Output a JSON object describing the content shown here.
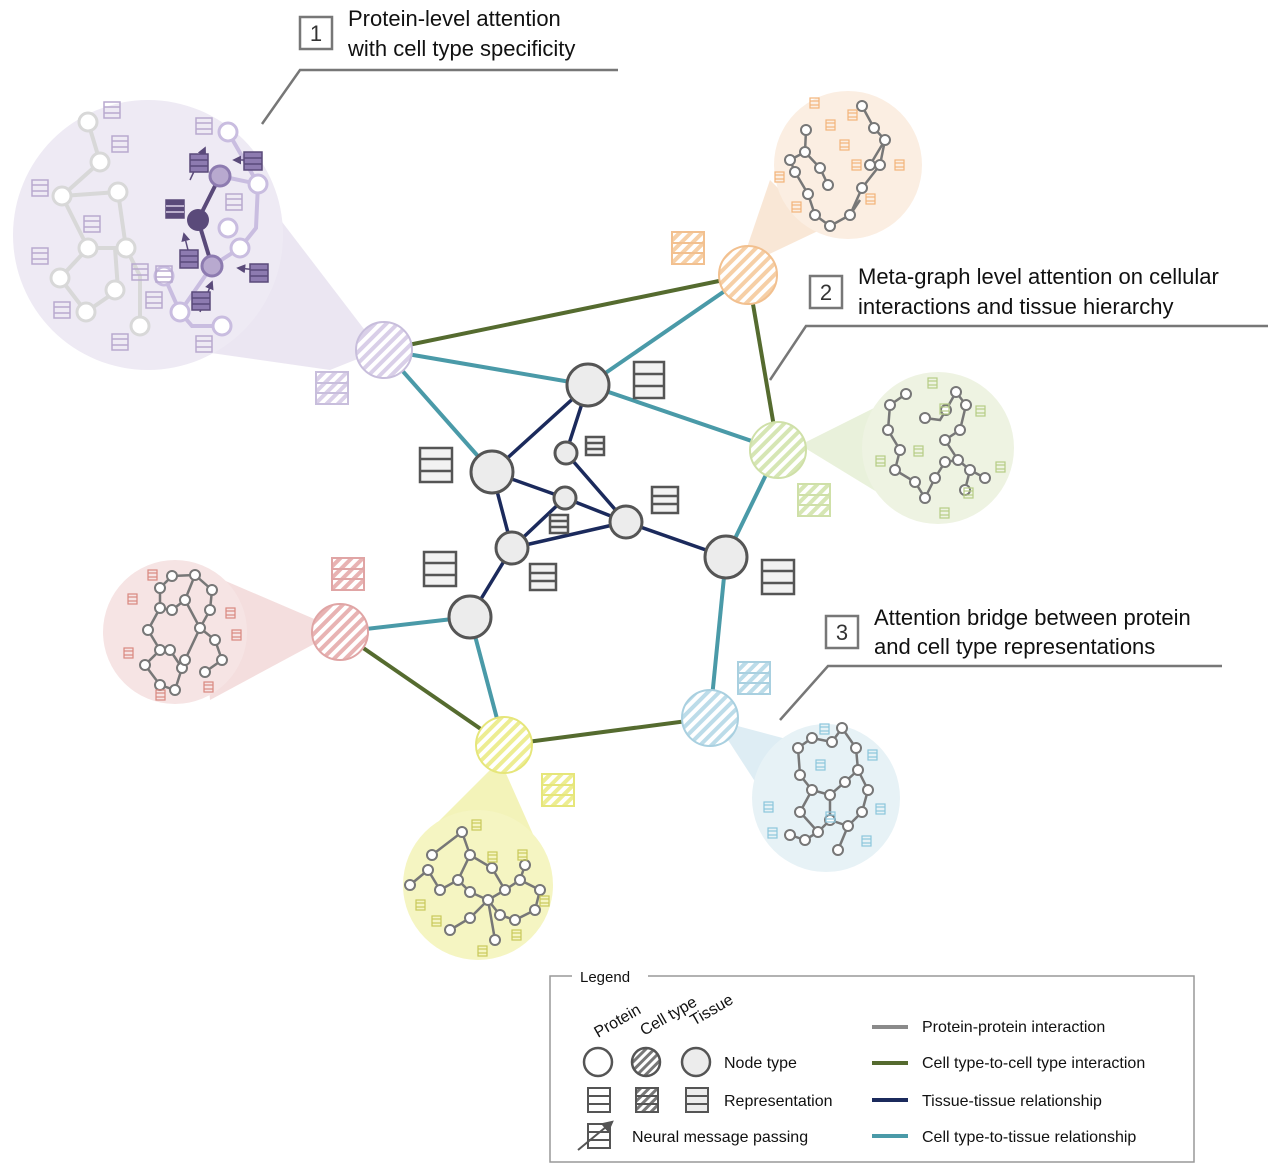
{
  "callouts": [
    {
      "number": "1",
      "line1": "Protein-level attention",
      "line2": "with cell type specificity"
    },
    {
      "number": "2",
      "line1": "Meta-graph level attention on cellular",
      "line2": "interactions and tissue hierarchy"
    },
    {
      "number": "3",
      "line1": "Attention bridge between protein",
      "line2": "and cell type representations"
    }
  ],
  "legend": {
    "title": "Legend",
    "column_headers": [
      "Protein",
      "Cell type",
      "Tissue"
    ],
    "node_type_label": "Node type",
    "representation_label": "Representation",
    "message_passing_label": "Neural message passing",
    "edges": [
      {
        "label": "Protein-protein interaction",
        "color": "#8a8a8a"
      },
      {
        "label": "Cell type-to-cell type interaction",
        "color": "#556b2f"
      },
      {
        "label": "Tissue-tissue relationship",
        "color": "#1b2a5c"
      },
      {
        "label": "Cell type-to-tissue relationship",
        "color": "#4a9aa8"
      }
    ]
  },
  "colors": {
    "purple": "#b8a9cf",
    "orange": "#f5c9a0",
    "green": "#cfe0a8",
    "red": "#e3a9a9",
    "yellow": "#ecec8e",
    "blue": "#b5d8e6",
    "tissue_node": "#ececec",
    "tissue_stroke": "#555555",
    "cc_edge": "#556b2f",
    "tt_edge": "#1b2a5c",
    "ct_edge": "#4a9aa8"
  }
}
